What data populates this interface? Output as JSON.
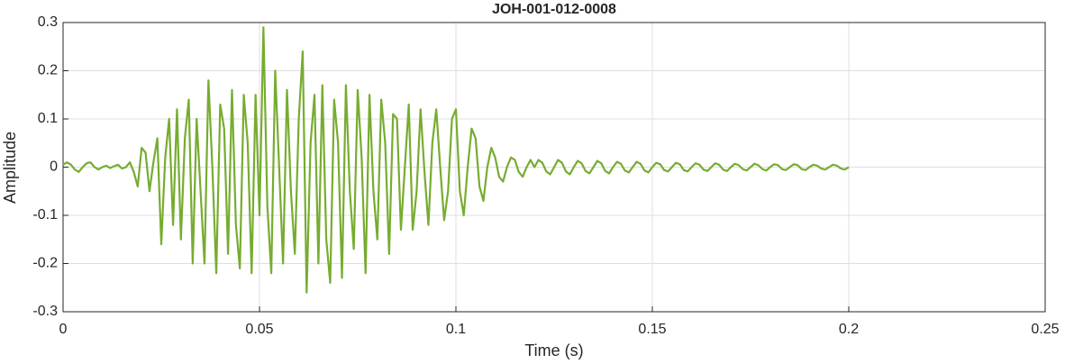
{
  "chart_data": {
    "type": "line",
    "title": "JOH-001-012-0008",
    "x_label": "Time (s)",
    "y_label": "Amplitude",
    "xlim": [
      0,
      0.25
    ],
    "xticks": [
      0,
      0.05,
      0.1,
      0.15,
      0.2,
      0.25
    ],
    "ylim": [
      -0.3,
      0.3
    ],
    "yticks": [
      -0.3,
      -0.2,
      -0.1,
      0,
      0.1,
      0.2,
      0.3
    ],
    "grid": true,
    "series": [
      {
        "color": "#77ac30",
        "x": [
          0,
          0.001,
          0.002,
          0.003,
          0.004,
          0.005,
          0.006,
          0.007,
          0.008,
          0.009,
          0.01,
          0.011,
          0.012,
          0.013,
          0.014,
          0.015,
          0.016,
          0.017,
          0.018,
          0.019,
          0.02,
          0.021,
          0.022,
          0.023,
          0.024,
          0.025,
          0.026,
          0.027,
          0.028,
          0.029,
          0.03,
          0.031,
          0.032,
          0.033,
          0.034,
          0.035,
          0.036,
          0.037,
          0.038,
          0.039,
          0.04,
          0.041,
          0.042,
          0.043,
          0.044,
          0.045,
          0.046,
          0.047,
          0.048,
          0.049,
          0.05,
          0.051,
          0.052,
          0.053,
          0.054,
          0.055,
          0.056,
          0.057,
          0.058,
          0.059,
          0.06,
          0.061,
          0.062,
          0.063,
          0.064,
          0.065,
          0.066,
          0.067,
          0.068,
          0.069,
          0.07,
          0.071,
          0.072,
          0.073,
          0.074,
          0.075,
          0.076,
          0.077,
          0.078,
          0.079,
          0.08,
          0.081,
          0.082,
          0.083,
          0.084,
          0.085,
          0.086,
          0.087,
          0.088,
          0.089,
          0.09,
          0.091,
          0.092,
          0.093,
          0.094,
          0.095,
          0.096,
          0.097,
          0.098,
          0.099,
          0.1,
          0.101,
          0.102,
          0.103,
          0.104,
          0.105,
          0.106,
          0.107,
          0.108,
          0.109,
          0.11,
          0.111,
          0.112,
          0.113,
          0.114,
          0.115,
          0.116,
          0.117,
          0.118,
          0.119,
          0.12,
          0.121,
          0.122,
          0.123,
          0.124,
          0.125,
          0.126,
          0.127,
          0.128,
          0.129,
          0.13,
          0.131,
          0.132,
          0.133,
          0.134,
          0.135,
          0.136,
          0.137,
          0.138,
          0.139,
          0.14,
          0.141,
          0.142,
          0.143,
          0.144,
          0.145,
          0.146,
          0.147,
          0.148,
          0.149,
          0.15,
          0.151,
          0.152,
          0.153,
          0.154,
          0.155,
          0.156,
          0.157,
          0.158,
          0.159,
          0.16,
          0.161,
          0.162,
          0.163,
          0.164,
          0.165,
          0.166,
          0.167,
          0.168,
          0.169,
          0.17,
          0.171,
          0.172,
          0.173,
          0.174,
          0.175,
          0.176,
          0.177,
          0.178,
          0.179,
          0.18,
          0.181,
          0.182,
          0.183,
          0.184,
          0.185,
          0.186,
          0.187,
          0.188,
          0.189,
          0.19,
          0.191,
          0.192,
          0.193,
          0.194,
          0.195,
          0.196,
          0.197,
          0.198,
          0.199,
          0.2
        ],
        "values": [
          0.005,
          0.01,
          0.005,
          -0.005,
          -0.01,
          0.0,
          0.008,
          0.01,
          0.0,
          -0.005,
          0.0,
          0.003,
          -0.002,
          0.002,
          0.005,
          -0.003,
          0.0,
          0.01,
          -0.01,
          -0.04,
          0.04,
          0.03,
          -0.05,
          0.01,
          0.06,
          -0.16,
          0.02,
          0.1,
          -0.12,
          0.12,
          -0.15,
          0.06,
          0.14,
          -0.2,
          0.1,
          -0.05,
          -0.2,
          0.18,
          0.0,
          -0.22,
          0.13,
          0.08,
          -0.18,
          0.16,
          -0.12,
          -0.21,
          0.15,
          0.05,
          -0.22,
          0.15,
          -0.1,
          0.29,
          -0.08,
          -0.22,
          0.2,
          0.0,
          -0.2,
          0.16,
          -0.05,
          -0.18,
          0.1,
          0.24,
          -0.26,
          0.05,
          0.15,
          -0.2,
          0.17,
          -0.15,
          -0.24,
          0.14,
          0.05,
          -0.23,
          0.17,
          -0.05,
          -0.17,
          0.16,
          0.02,
          -0.22,
          0.15,
          -0.05,
          -0.15,
          0.14,
          0.05,
          -0.18,
          0.11,
          0.1,
          -0.13,
          0.0,
          0.13,
          -0.13,
          -0.05,
          0.12,
          -0.01,
          -0.12,
          0.05,
          0.12,
          0.0,
          -0.11,
          -0.05,
          0.1,
          0.12,
          -0.05,
          -0.1,
          0.0,
          0.08,
          0.06,
          -0.04,
          -0.07,
          0.0,
          0.04,
          0.02,
          -0.02,
          -0.03,
          0.0,
          0.02,
          0.015,
          -0.01,
          -0.02,
          0.0,
          0.015,
          0,
          0.015,
          0.009,
          -0.009,
          -0.015,
          0,
          0.015,
          0.009,
          -0.009,
          -0.015,
          0,
          0.013,
          0.008,
          -0.008,
          -0.013,
          0,
          0.013,
          0.008,
          -0.008,
          -0.013,
          0,
          0.011,
          0.007,
          -0.007,
          -0.011,
          0,
          0.011,
          0.007,
          -0.007,
          -0.011,
          0,
          0.009,
          0.006,
          -0.006,
          -0.009,
          0,
          0.009,
          0.006,
          -0.006,
          -0.009,
          0,
          0.008,
          0.005,
          -0.005,
          -0.008,
          0,
          0.008,
          0.005,
          -0.005,
          -0.008,
          0,
          0.007,
          0.004,
          -0.004,
          -0.007,
          0,
          0.007,
          0.004,
          -0.004,
          -0.007,
          0,
          0.006,
          0.004,
          -0.004,
          -0.006,
          0,
          0.006,
          0.004,
          -0.004,
          -0.006,
          0,
          0.005,
          0.003,
          -0.003,
          -0.005,
          0,
          0.005,
          0.003,
          -0.003,
          -0.005,
          0
        ]
      }
    ]
  }
}
